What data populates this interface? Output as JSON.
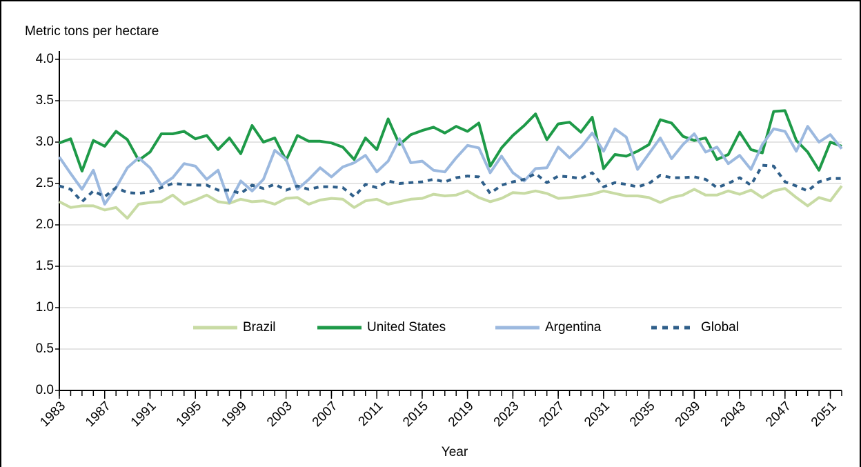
{
  "chart_data": {
    "type": "line",
    "y_label": "Metric tons per hectare",
    "x_label": "Year",
    "x": [
      1983,
      1984,
      1985,
      1986,
      1987,
      1988,
      1989,
      1990,
      1991,
      1992,
      1993,
      1994,
      1995,
      1996,
      1997,
      1998,
      1999,
      2000,
      2001,
      2002,
      2003,
      2004,
      2005,
      2006,
      2007,
      2008,
      2009,
      2010,
      2011,
      2012,
      2013,
      2014,
      2015,
      2016,
      2017,
      2018,
      2019,
      2020,
      2021,
      2022,
      2023,
      2024,
      2025,
      2026,
      2027,
      2028,
      2029,
      2030,
      2031,
      2032,
      2033,
      2034,
      2035,
      2036,
      2037,
      2038,
      2039,
      2040,
      2041,
      2042,
      2043,
      2044,
      2045,
      2046,
      2047,
      2048,
      2049,
      2050,
      2051,
      2052
    ],
    "xlim": [
      1983,
      2052
    ],
    "xticks": [
      1983,
      1987,
      1991,
      1995,
      1999,
      2003,
      2007,
      2011,
      2015,
      2019,
      2023,
      2027,
      2031,
      2035,
      2039,
      2043,
      2047,
      2051
    ],
    "ylim": [
      0,
      4
    ],
    "yticks": [
      {
        "value": 0,
        "label": "0.0"
      },
      {
        "value": 0.5,
        "label": "0.5"
      },
      {
        "value": 1,
        "label": "1.0"
      },
      {
        "value": 1.5,
        "label": "1.5"
      },
      {
        "value": 2,
        "label": "2.0"
      },
      {
        "value": 2.5,
        "label": "2.5"
      },
      {
        "value": 3,
        "label": "3.0"
      },
      {
        "value": 3.5,
        "label": "3.5"
      },
      {
        "value": 4,
        "label": "4.0"
      }
    ],
    "grid": true,
    "legend": "bottom",
    "series": [
      {
        "name": "Brazil",
        "color": "#c8dba4",
        "dash": false,
        "values": [
          2.28,
          2.21,
          2.23,
          2.23,
          2.18,
          2.21,
          2.08,
          2.25,
          2.27,
          2.28,
          2.36,
          2.25,
          2.3,
          2.36,
          2.28,
          2.26,
          2.31,
          2.28,
          2.29,
          2.25,
          2.32,
          2.33,
          2.25,
          2.3,
          2.32,
          2.31,
          2.21,
          2.29,
          2.31,
          2.25,
          2.28,
          2.31,
          2.32,
          2.37,
          2.35,
          2.36,
          2.41,
          2.33,
          2.28,
          2.32,
          2.39,
          2.38,
          2.41,
          2.38,
          2.32,
          2.33,
          2.35,
          2.37,
          2.41,
          2.38,
          2.35,
          2.35,
          2.33,
          2.27,
          2.33,
          2.36,
          2.43,
          2.36,
          2.36,
          2.41,
          2.37,
          2.42,
          2.33,
          2.41,
          2.44,
          2.33,
          2.23,
          2.33,
          2.29,
          2.47
        ]
      },
      {
        "name": "United States",
        "color": "#1e9a48",
        "dash": false,
        "values": [
          2.99,
          3.04,
          2.65,
          3.02,
          2.95,
          3.13,
          3.03,
          2.78,
          2.88,
          3.1,
          3.1,
          3.13,
          3.04,
          3.08,
          2.91,
          3.05,
          2.86,
          3.2,
          3.0,
          3.05,
          2.78,
          3.08,
          3.01,
          3.01,
          2.99,
          2.94,
          2.79,
          3.05,
          2.91,
          3.28,
          2.97,
          3.09,
          3.14,
          3.18,
          3.11,
          3.19,
          3.13,
          3.23,
          2.71,
          2.93,
          3.08,
          3.2,
          3.34,
          3.03,
          3.22,
          3.24,
          3.12,
          3.3,
          2.68,
          2.85,
          2.83,
          2.89,
          2.97,
          3.27,
          3.23,
          3.07,
          3.02,
          3.05,
          2.79,
          2.85,
          3.12,
          2.91,
          2.87,
          3.37,
          3.38,
          3.02,
          2.88,
          2.66,
          3.0,
          2.95
        ]
      },
      {
        "name": "Argentina",
        "color": "#9cb9df",
        "dash": false,
        "values": [
          2.82,
          2.62,
          2.43,
          2.66,
          2.25,
          2.45,
          2.69,
          2.81,
          2.69,
          2.48,
          2.57,
          2.74,
          2.71,
          2.55,
          2.66,
          2.27,
          2.53,
          2.41,
          2.55,
          2.9,
          2.79,
          2.43,
          2.55,
          2.69,
          2.58,
          2.7,
          2.75,
          2.84,
          2.64,
          2.77,
          3.04,
          2.75,
          2.77,
          2.66,
          2.64,
          2.81,
          2.96,
          2.93,
          2.63,
          2.83,
          2.63,
          2.53,
          2.68,
          2.69,
          2.94,
          2.81,
          2.94,
          3.11,
          2.89,
          3.16,
          3.06,
          2.67,
          2.86,
          3.05,
          2.8,
          2.97,
          3.1,
          2.88,
          2.94,
          2.74,
          2.84,
          2.67,
          2.97,
          3.16,
          3.13,
          2.89,
          3.19,
          3.0,
          3.09,
          2.92
        ]
      },
      {
        "name": "Global",
        "color": "#2f5f8a",
        "dash": true,
        "values": [
          2.47,
          2.43,
          2.28,
          2.41,
          2.34,
          2.45,
          2.39,
          2.38,
          2.4,
          2.45,
          2.5,
          2.49,
          2.48,
          2.48,
          2.42,
          2.42,
          2.38,
          2.48,
          2.44,
          2.49,
          2.42,
          2.47,
          2.43,
          2.46,
          2.46,
          2.45,
          2.34,
          2.49,
          2.45,
          2.53,
          2.5,
          2.51,
          2.52,
          2.55,
          2.52,
          2.57,
          2.59,
          2.58,
          2.38,
          2.48,
          2.52,
          2.55,
          2.62,
          2.51,
          2.59,
          2.58,
          2.56,
          2.63,
          2.46,
          2.51,
          2.49,
          2.46,
          2.5,
          2.6,
          2.57,
          2.57,
          2.58,
          2.55,
          2.45,
          2.5,
          2.57,
          2.48,
          2.72,
          2.71,
          2.52,
          2.47,
          2.41,
          2.52,
          2.56,
          2.56
        ]
      }
    ]
  }
}
